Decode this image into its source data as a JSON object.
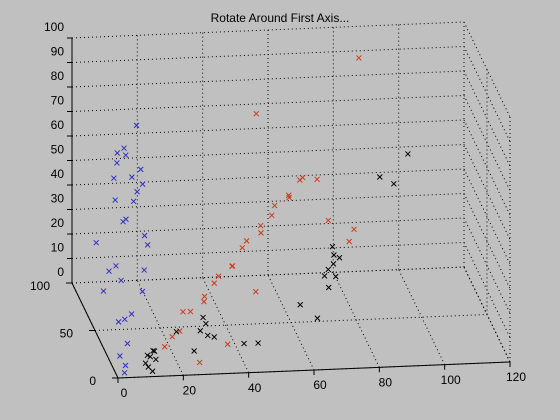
{
  "chart_data": {
    "type": "scatter3d",
    "title": "Rotate Around First Axis...",
    "xlim": [
      0,
      120
    ],
    "ylim": [
      0,
      100
    ],
    "zlim": [
      0,
      100
    ],
    "xticks": [
      0,
      20,
      40,
      60,
      80,
      100,
      120
    ],
    "yticks": [
      0,
      50,
      100
    ],
    "zticks": [
      0,
      10,
      20,
      30,
      40,
      50,
      60,
      70,
      80,
      90,
      100
    ],
    "grid": true,
    "marker": "x",
    "series": [
      {
        "color": "#3030c0",
        "x": [
          2,
          3,
          5,
          8,
          10,
          12,
          6,
          4,
          15,
          9,
          7,
          11,
          14,
          5,
          3,
          13,
          16,
          8,
          10,
          6,
          12,
          4,
          9,
          18,
          7,
          2,
          11,
          5,
          14,
          20
        ],
        "y": [
          10,
          20,
          40,
          50,
          60,
          55,
          45,
          30,
          65,
          70,
          35,
          25,
          50,
          15,
          5,
          75,
          60,
          40,
          80,
          90,
          45,
          60,
          30,
          70,
          20,
          0,
          65,
          55,
          35,
          85
        ],
        "z": [
          5,
          15,
          30,
          20,
          40,
          60,
          70,
          80,
          50,
          45,
          10,
          25,
          65,
          8,
          3,
          35,
          55,
          75,
          50,
          20,
          85,
          12,
          60,
          30,
          18,
          2,
          68,
          22,
          40,
          10
        ]
      },
      {
        "color": "#d03818",
        "x": [
          15,
          18,
          20,
          22,
          25,
          28,
          30,
          32,
          35,
          38,
          40,
          42,
          45,
          48,
          50,
          52,
          55,
          58,
          60,
          62,
          65,
          68,
          70,
          75,
          80,
          85,
          25,
          35,
          45,
          55
        ],
        "y": [
          5,
          10,
          8,
          15,
          20,
          12,
          25,
          18,
          30,
          22,
          35,
          28,
          40,
          30,
          45,
          35,
          50,
          40,
          55,
          45,
          60,
          50,
          40,
          30,
          55,
          80,
          0,
          10,
          20,
          90
        ],
        "z": [
          10,
          12,
          15,
          20,
          18,
          25,
          22,
          30,
          28,
          35,
          30,
          40,
          38,
          45,
          42,
          50,
          48,
          55,
          50,
          60,
          55,
          58,
          45,
          40,
          35,
          95,
          5,
          8,
          25,
          70
        ]
      },
      {
        "color": "#000000",
        "x": [
          10,
          11,
          12,
          9,
          10,
          13,
          28,
          30,
          32,
          29,
          31,
          70,
          72,
          71,
          73,
          74,
          69,
          70,
          72,
          90,
          100,
          95,
          20,
          25,
          60,
          65,
          40,
          45,
          11,
          12
        ],
        "y": [
          5,
          8,
          6,
          4,
          7,
          10,
          20,
          22,
          18,
          21,
          25,
          40,
          42,
          38,
          45,
          44,
          41,
          39,
          43,
          70,
          80,
          75,
          15,
          12,
          30,
          28,
          10,
          15,
          3,
          9
        ],
        "z": [
          2,
          5,
          8,
          4,
          6,
          3,
          10,
          12,
          8,
          15,
          6,
          25,
          30,
          35,
          20,
          28,
          22,
          18,
          26,
          50,
          55,
          45,
          12,
          5,
          15,
          10,
          8,
          6,
          1,
          7
        ]
      }
    ]
  }
}
